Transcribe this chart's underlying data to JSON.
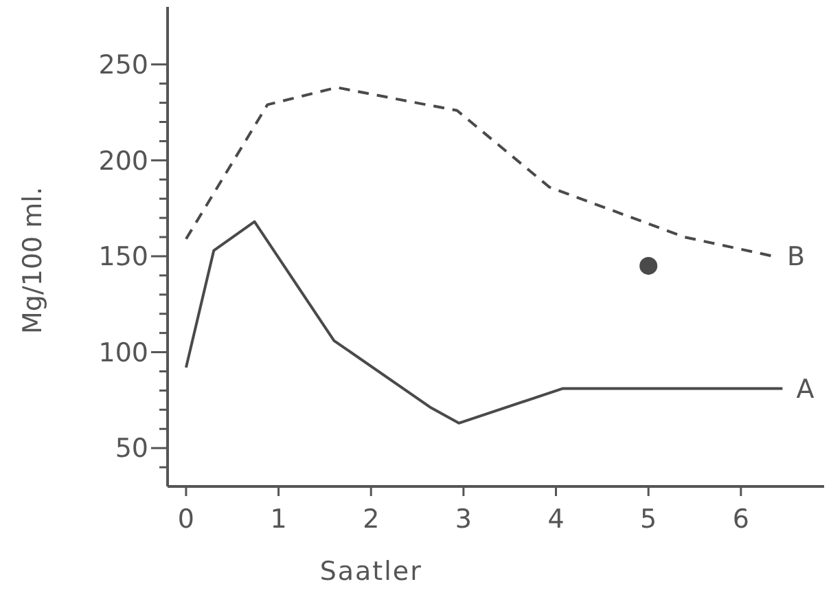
{
  "chart_data": {
    "type": "line",
    "xlabel": "Saatler",
    "ylabel": "Mg/100 ml.",
    "xlim": [
      -0.2,
      6.9
    ],
    "ylim": [
      30,
      280
    ],
    "xticks": [
      0,
      1,
      2,
      3,
      4,
      5,
      6
    ],
    "yticks": [
      {
        "value": 40,
        "label": null
      },
      50,
      {
        "value": 60,
        "label": null
      },
      {
        "value": 70,
        "label": null
      },
      {
        "value": 80,
        "label": null
      },
      {
        "value": 90,
        "label": null
      },
      100,
      {
        "value": 110,
        "label": null
      },
      {
        "value": 120,
        "label": null
      },
      {
        "value": 130,
        "label": null
      },
      {
        "value": 140,
        "label": null
      },
      150,
      {
        "value": 160,
        "label": null
      },
      {
        "value": 170,
        "label": null
      },
      {
        "value": 180,
        "label": null
      },
      {
        "value": 190,
        "label": null
      },
      200,
      {
        "value": 210,
        "label": null
      },
      {
        "value": 220,
        "label": null
      },
      {
        "value": 230,
        "label": null
      },
      {
        "value": 240,
        "label": null
      },
      250
    ],
    "grid": false,
    "series": [
      {
        "name": "A",
        "color": "#4a4a4a",
        "line_style": "solid",
        "marker": "none",
        "x": [
          0,
          0.3,
          0.74,
          1.6,
          2.65,
          2.95,
          4.07,
          6.45
        ],
        "values": [
          92,
          153,
          168,
          106,
          71,
          63,
          81,
          81
        ]
      },
      {
        "name": "B",
        "color": "#4a4a4a",
        "line_style": "dashed",
        "marker": "none",
        "x": [
          0,
          0.88,
          1.63,
          2.38,
          2.93,
          3.93,
          5.39,
          6.35
        ],
        "values": [
          159,
          229,
          238,
          231,
          226,
          186,
          160,
          150
        ]
      },
      {
        "type": "scatter",
        "color": "#4a4a4a",
        "marker": "circle",
        "x": [
          5.0
        ],
        "values": [
          145
        ]
      }
    ]
  }
}
